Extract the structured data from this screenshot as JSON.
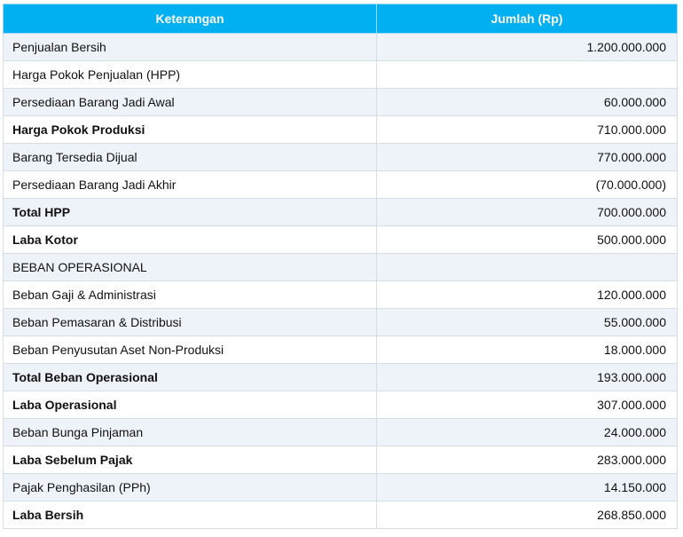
{
  "header": {
    "col_desc": "Keterangan",
    "col_amount": "Jumlah (Rp)"
  },
  "rows": [
    {
      "desc": "Penjualan Bersih",
      "amount": "1.200.000.000",
      "bold": false
    },
    {
      "desc": "Harga Pokok Penjualan (HPP)",
      "amount": "",
      "bold": false
    },
    {
      "desc": "Persediaan Barang Jadi Awal",
      "amount": "60.000.000",
      "bold": false
    },
    {
      "desc": "Harga Pokok Produksi",
      "amount": "710.000.000",
      "bold": true
    },
    {
      "desc": "Barang Tersedia Dijual",
      "amount": "770.000.000",
      "bold": false
    },
    {
      "desc": "Persediaan Barang Jadi Akhir",
      "amount": "(70.000.000)",
      "bold": false
    },
    {
      "desc": "Total HPP",
      "amount": "700.000.000",
      "bold": true
    },
    {
      "desc": "Laba Kotor",
      "amount": "500.000.000",
      "bold": true
    },
    {
      "desc": "BEBAN OPERASIONAL",
      "amount": "",
      "bold": false
    },
    {
      "desc": "Beban Gaji & Administrasi",
      "amount": "120.000.000",
      "bold": false
    },
    {
      "desc": "Beban Pemasaran & Distribusi",
      "amount": "55.000.000",
      "bold": false
    },
    {
      "desc": "Beban Penyusutan Aset Non-Produksi",
      "amount": "18.000.000",
      "bold": false
    },
    {
      "desc": "Total Beban Operasional",
      "amount": "193.000.000",
      "bold": true
    },
    {
      "desc": "Laba Operasional",
      "amount": "307.000.000",
      "bold": true
    },
    {
      "desc": "Beban Bunga Pinjaman",
      "amount": "24.000.000",
      "bold": false
    },
    {
      "desc": "Laba Sebelum Pajak",
      "amount": "283.000.000",
      "bold": true
    },
    {
      "desc": "Pajak Penghasilan (PPh)",
      "amount": "14.150.000",
      "bold": false
    },
    {
      "desc": "Laba Bersih",
      "amount": "268.850.000",
      "bold": true
    }
  ],
  "colors": {
    "header_bg": "#00b0f0",
    "header_text": "#ffffff",
    "row_alt_bg": "#eef3f9",
    "row_bg": "#ffffff",
    "border": "#d6dde4"
  }
}
